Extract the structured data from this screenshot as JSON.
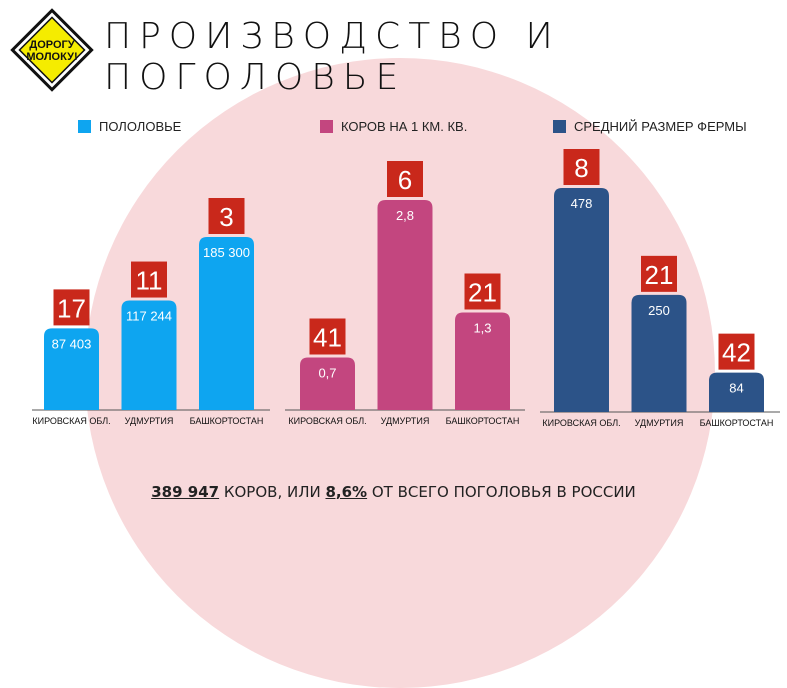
{
  "logo": {
    "line1": "ДОРОГУ",
    "line2": "МОЛОКУ!"
  },
  "title": "ПРОИЗВОДСТВО И ПОГОЛОВЬЕ",
  "colors": {
    "background_circle": "#f8d9db",
    "rank_badge": "#c9281b",
    "logo_yellow": "#f5ec00"
  },
  "footer": {
    "count": "389 947",
    "text1": " КОРОВ, ИЛИ ",
    "percent": "8,6%",
    "text2": " ОТ ВСЕГО ПОГОЛОВЬЯ В РОССИИ"
  },
  "chart_data": [
    {
      "type": "bar",
      "legend": "ПОЛОЛОВЬЕ",
      "color": "#0ea5f0",
      "categories": [
        "КИРОВСКАЯ ОБЛ.",
        "УДМУРТИЯ",
        "БАШКОРТОСТАН"
      ],
      "values": [
        87403,
        117244,
        185300
      ],
      "value_labels": [
        "87 403",
        "117 244",
        "185 300"
      ],
      "ranks": [
        "17",
        "11",
        "3"
      ]
    },
    {
      "type": "bar",
      "legend": "КОРОВ НА 1 КМ. КВ.",
      "color": "#c3467f",
      "categories": [
        "КИРОВСКАЯ ОБЛ.",
        "УДМУРТИЯ",
        "БАШКОРТОСТАН"
      ],
      "values": [
        0.7,
        2.8,
        1.3
      ],
      "value_labels": [
        "0,7",
        "2,8",
        "1,3"
      ],
      "ranks": [
        "41",
        "6",
        "21"
      ]
    },
    {
      "type": "bar",
      "legend": "СРЕДНИЙ РАЗМЕР ФЕРМЫ",
      "color": "#2c5388",
      "categories": [
        "КИРОВСКАЯ ОБЛ.",
        "УДМУРТИЯ",
        "БАШКОРТОСТАН"
      ],
      "values": [
        478,
        250,
        84
      ],
      "value_labels": [
        "478",
        "250",
        "84"
      ],
      "ranks": [
        "8",
        "21",
        "42"
      ]
    }
  ]
}
